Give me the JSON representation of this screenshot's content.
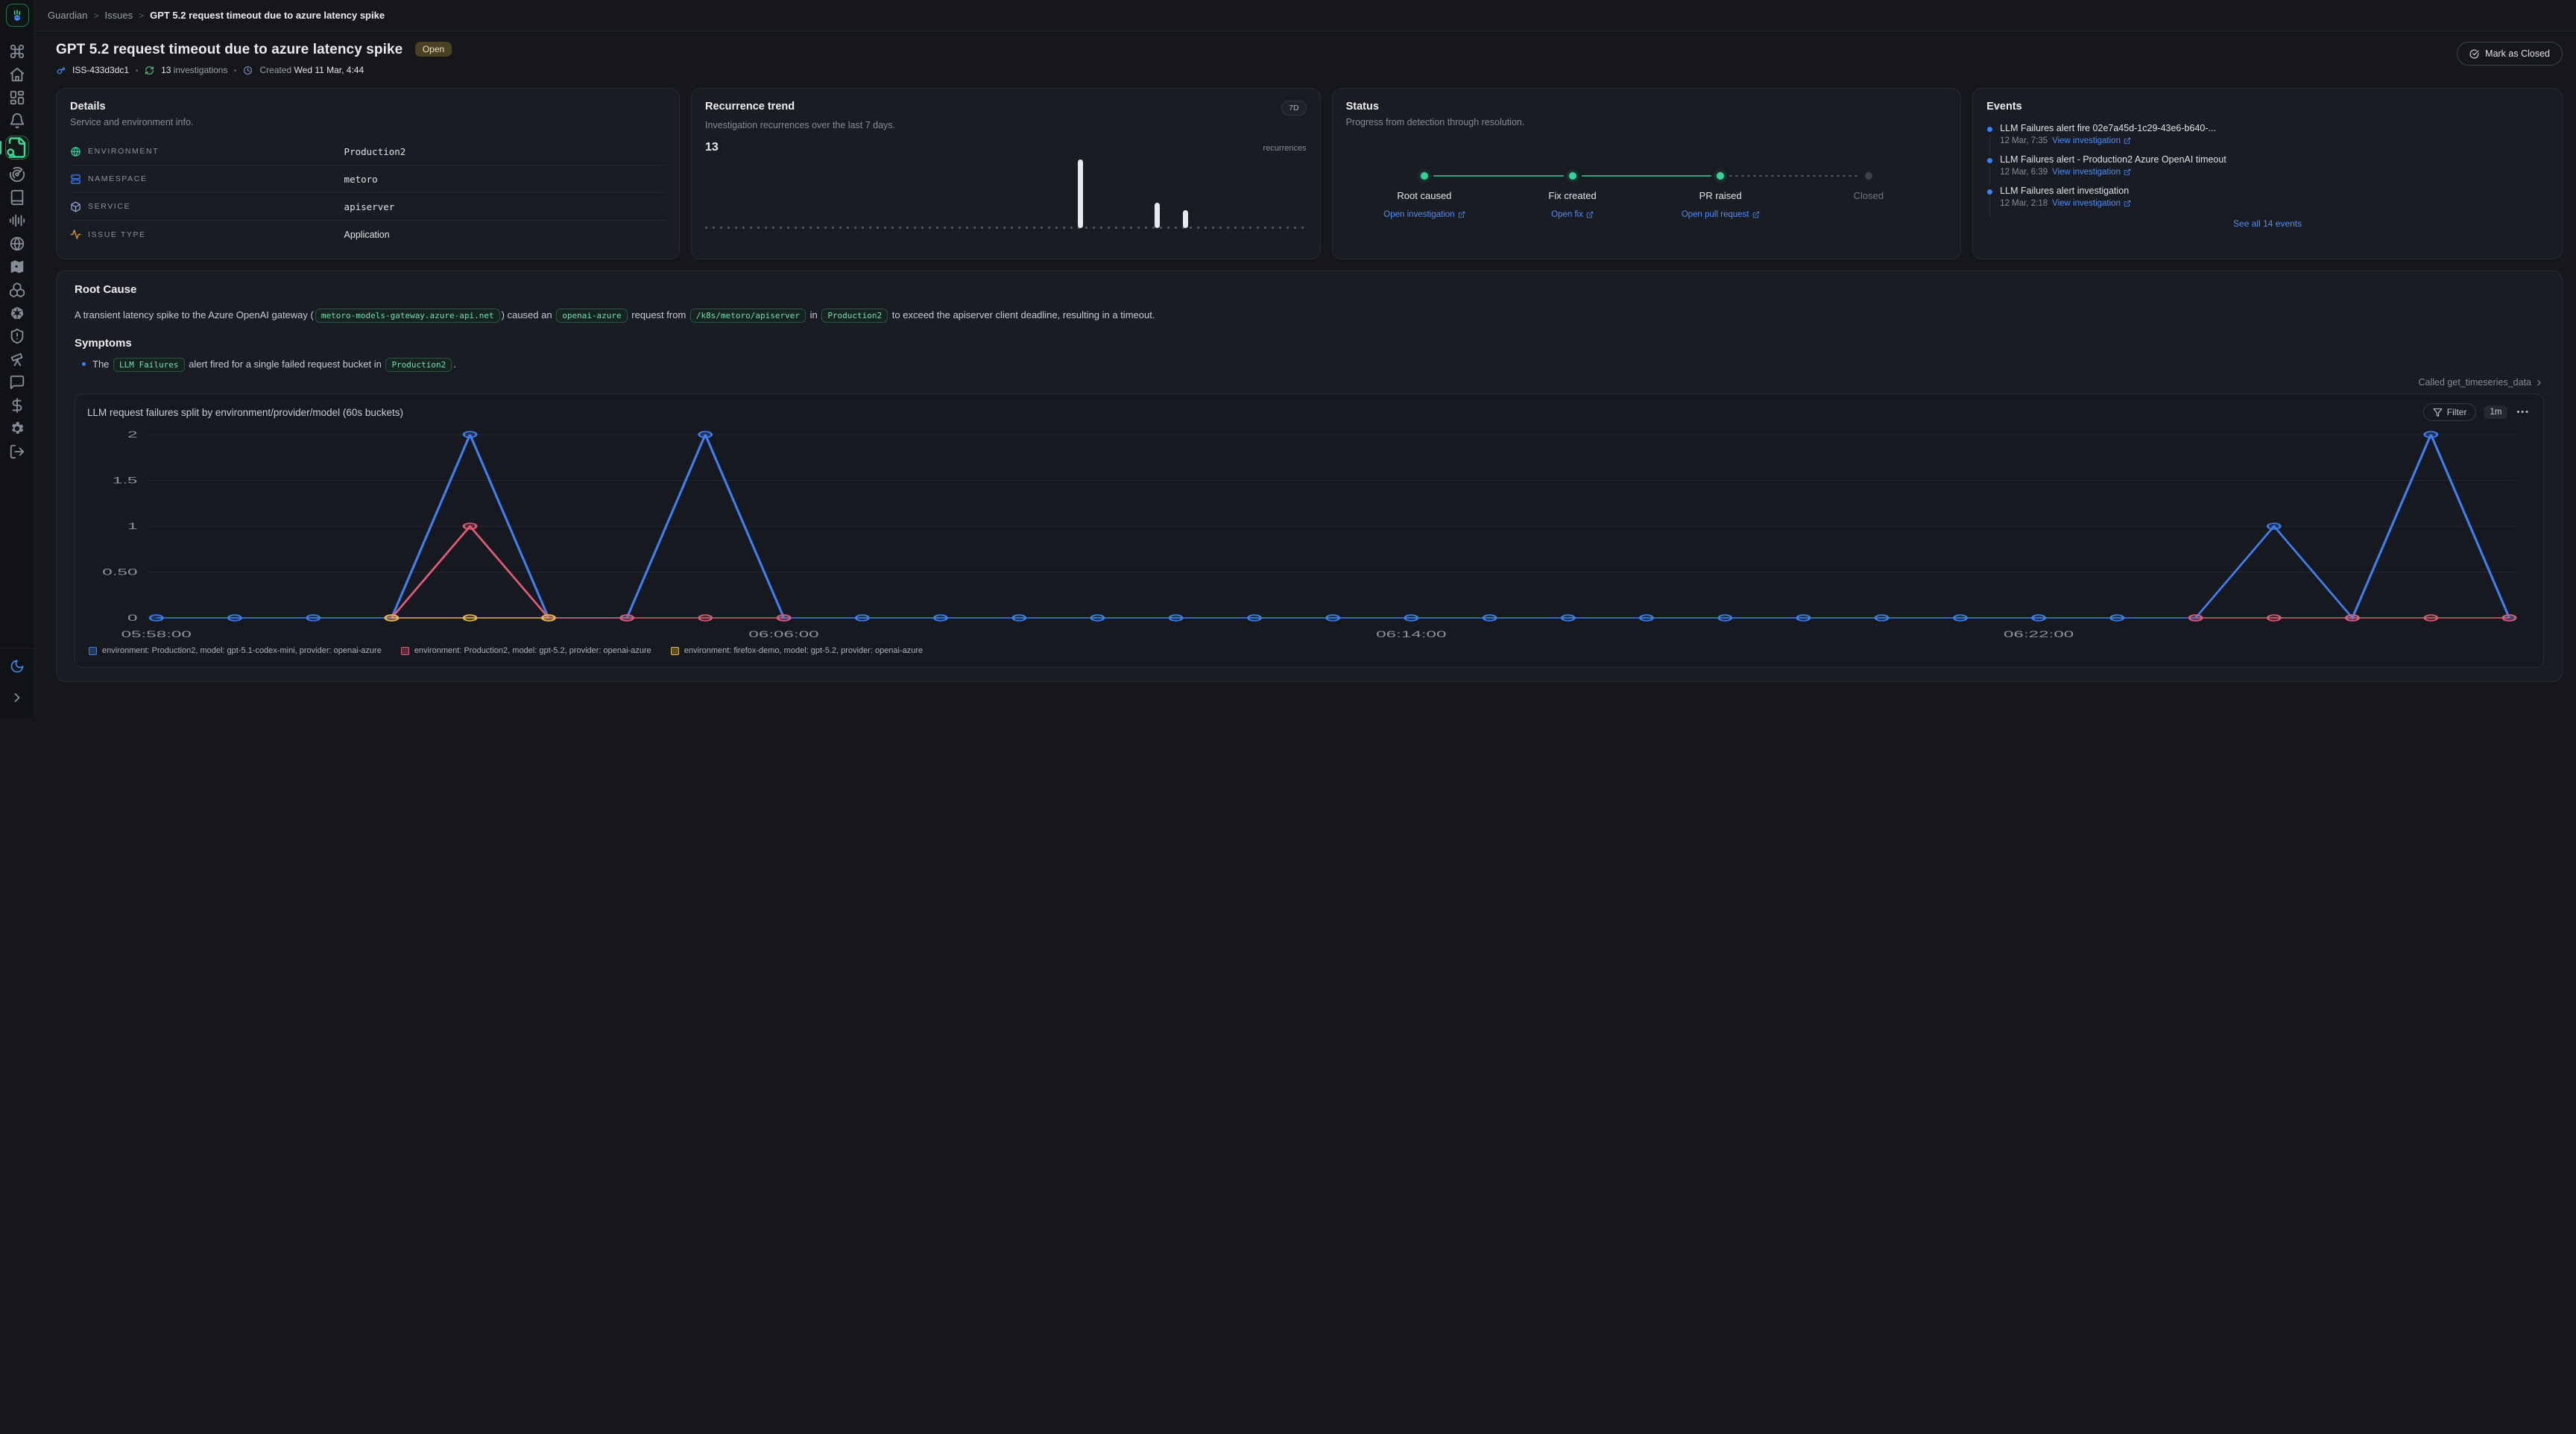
{
  "topbar": {
    "breadcrumb": [
      "Guardian",
      "Issues",
      "GPT 5.2 request timeout due to azure latency spike"
    ],
    "separator": ">"
  },
  "sidebar": {
    "icons": [
      "command",
      "home",
      "dashboard",
      "bell",
      "file-search",
      "radar",
      "book",
      "audio-waveform",
      "globe",
      "map",
      "boxes",
      "kubernetes",
      "shield-alert",
      "telescope",
      "chat",
      "dollar",
      "settings",
      "logout"
    ],
    "active_icon": "file-search",
    "footer_icons": [
      "moon",
      "chevron-right"
    ]
  },
  "header": {
    "title": "GPT 5.2 request timeout due to azure latency spike",
    "status_badge": "Open",
    "issue_id": "ISS-433d3dc1",
    "investigations_count": "13",
    "investigations_label": "investigations",
    "created_label": "Created",
    "created_value": "Wed 11 Mar, 4:44",
    "close_button": "Mark as Closed"
  },
  "details_card": {
    "title": "Details",
    "subtitle": "Service and environment info.",
    "rows": [
      {
        "icon": "globe-green",
        "label": "ENVIRONMENT",
        "value": "Production2",
        "mono": true
      },
      {
        "icon": "server",
        "label": "NAMESPACE",
        "value": "metoro",
        "mono": true
      },
      {
        "icon": "cube",
        "label": "SERVICE",
        "value": "apiserver",
        "mono": true
      },
      {
        "icon": "activity",
        "label": "ISSUE TYPE",
        "value": "Application",
        "mono": false
      }
    ]
  },
  "recurrence_card": {
    "title": "Recurrence trend",
    "range_badge": "7D",
    "subtitle": "Investigation recurrences over the last 7 days.",
    "count": "13",
    "unit": "recurrences",
    "bars": [
      {
        "x": 0.62,
        "h": 1.0
      },
      {
        "x": 0.748,
        "h": 0.37
      },
      {
        "x": 0.795,
        "h": 0.26
      }
    ]
  },
  "status_card": {
    "title": "Status",
    "subtitle": "Progress from detection through resolution.",
    "steps": [
      {
        "label": "Root caused",
        "done": true,
        "link": "Open investigation"
      },
      {
        "label": "Fix created",
        "done": true,
        "link": "Open fix"
      },
      {
        "label": "PR raised",
        "done": true,
        "link": "Open pull request"
      },
      {
        "label": "Closed",
        "done": false,
        "link": null
      }
    ]
  },
  "events_card": {
    "title": "Events",
    "items": [
      {
        "title": "LLM Failures alert fire 02e7a45d-1c29-43e6-b640-...",
        "time": "12 Mar, 7:35",
        "link": "View investigation"
      },
      {
        "title": "LLM Failures alert - Production2 Azure OpenAI timeout",
        "time": "12 Mar, 6:39",
        "link": "View investigation"
      },
      {
        "title": "LLM Failures alert investigation",
        "time": "12 Mar, 2:18",
        "link": "View investigation"
      }
    ],
    "see_all": "See all 14 events"
  },
  "analysis": {
    "root_cause_title": "Root Cause",
    "root_cause_segments": [
      {
        "t": "text",
        "v": "A transient latency spike to the Azure OpenAI gateway ("
      },
      {
        "t": "chip",
        "v": "metoro-models-gateway.azure-api.net"
      },
      {
        "t": "text",
        "v": ") caused an "
      },
      {
        "t": "chip",
        "v": "openai-azure"
      },
      {
        "t": "text",
        "v": " request from "
      },
      {
        "t": "chip",
        "v": "/k8s/metoro/apiserver"
      },
      {
        "t": "text",
        "v": " in "
      },
      {
        "t": "chip",
        "v": "Production2"
      },
      {
        "t": "text",
        "v": " to exceed the apiserver client deadline, resulting in a timeout."
      }
    ],
    "symptoms_title": "Symptoms",
    "symptom_segments": [
      {
        "t": "text",
        "v": "The "
      },
      {
        "t": "chip",
        "v": "LLM Failures"
      },
      {
        "t": "text",
        "v": " alert fired for a single failed request bucket in "
      },
      {
        "t": "chip",
        "v": "Production2"
      },
      {
        "t": "text",
        "v": "."
      }
    ],
    "tool_call_label": "Called get_timeseries_data"
  },
  "chart_card": {
    "title": "LLM request failures split by environment/provider/model (60s buckets)",
    "filter_label": "Filter",
    "interval_label": "1m",
    "menu_glyph": "•••"
  },
  "chart_data": {
    "type": "line",
    "x": [
      "05:58:00",
      "05:59:00",
      "06:00:00",
      "06:01:00",
      "06:02:00",
      "06:03:00",
      "06:04:00",
      "06:05:00",
      "06:06:00",
      "06:07:00",
      "06:08:00",
      "06:09:00",
      "06:10:00",
      "06:11:00",
      "06:12:00",
      "06:13:00",
      "06:14:00",
      "06:15:00",
      "06:16:00",
      "06:17:00",
      "06:18:00",
      "06:19:00",
      "06:20:00",
      "06:21:00",
      "06:22:00",
      "06:23:00",
      "06:24:00",
      "06:25:00",
      "06:26:00",
      "06:27:00",
      "06:28:00"
    ],
    "tick_indices": [
      0,
      8,
      16,
      24
    ],
    "ylim": [
      0,
      2
    ],
    "yticks": [
      {
        "v": 0,
        "label": "0"
      },
      {
        "v": 0.5,
        "label": "0.50"
      },
      {
        "v": 1,
        "label": "1"
      },
      {
        "v": 1.5,
        "label": "1.5"
      },
      {
        "v": 2,
        "label": "2"
      }
    ],
    "grid": true,
    "legend_position": "bottom-left",
    "series": [
      {
        "name": "environment: Production2, model: gpt-5.1-codex-mini, provider: openai-azure",
        "color": "#3f7ef0",
        "values": [
          0,
          0,
          0,
          0,
          2,
          0,
          0,
          2,
          0,
          0,
          0,
          0,
          0,
          0,
          0,
          0,
          0,
          0,
          0,
          0,
          0,
          0,
          0,
          0,
          0,
          0,
          0,
          1,
          0,
          2,
          0
        ]
      },
      {
        "name": "environment: Production2, model: gpt-5.2, provider: openai-azure",
        "color": "#e25a75",
        "values": [
          null,
          null,
          null,
          0,
          1,
          0,
          0,
          0,
          0,
          null,
          null,
          null,
          null,
          null,
          null,
          null,
          null,
          null,
          null,
          null,
          null,
          null,
          null,
          null,
          null,
          null,
          0,
          0,
          0,
          0,
          0
        ]
      },
      {
        "name": "environment: firefox-demo, model: gpt-5.2, provider: openai-azure",
        "color": "#e3b93f",
        "values": [
          null,
          null,
          null,
          0,
          0,
          0,
          null,
          null,
          null,
          null,
          null,
          null,
          null,
          null,
          null,
          null,
          null,
          null,
          null,
          null,
          null,
          null,
          null,
          null,
          null,
          null,
          null,
          null,
          null,
          null,
          null
        ]
      }
    ]
  }
}
